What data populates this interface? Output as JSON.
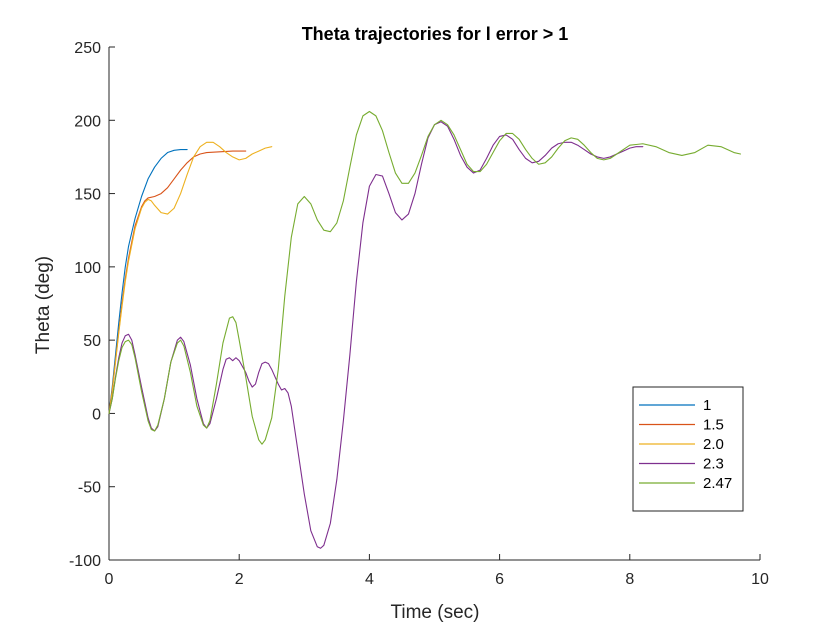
{
  "chart_data": {
    "type": "line",
    "title": "Theta trajectories for l error > 1",
    "xlabel": "Time (sec)",
    "ylabel": "Theta (deg)",
    "xlim": [
      0,
      10
    ],
    "ylim": [
      -100,
      250
    ],
    "xticks": [
      0,
      2,
      4,
      6,
      8,
      10
    ],
    "yticks": [
      -100,
      -50,
      0,
      50,
      100,
      150,
      200,
      250
    ],
    "grid": false,
    "legend_position": "bottom-right",
    "series": [
      {
        "name": "1",
        "color": "#0072BD",
        "points": [
          [
            0,
            0
          ],
          [
            0.05,
            18
          ],
          [
            0.1,
            40
          ],
          [
            0.15,
            62
          ],
          [
            0.2,
            82
          ],
          [
            0.25,
            100
          ],
          [
            0.3,
            114
          ],
          [
            0.4,
            133
          ],
          [
            0.5,
            148
          ],
          [
            0.6,
            160
          ],
          [
            0.7,
            168
          ],
          [
            0.8,
            174
          ],
          [
            0.9,
            178
          ],
          [
            1.0,
            179.5
          ],
          [
            1.1,
            180
          ],
          [
            1.2,
            180
          ]
        ]
      },
      {
        "name": "1.5",
        "color": "#D95319",
        "points": [
          [
            0,
            0
          ],
          [
            0.05,
            16
          ],
          [
            0.1,
            36
          ],
          [
            0.15,
            56
          ],
          [
            0.2,
            75
          ],
          [
            0.25,
            92
          ],
          [
            0.3,
            106
          ],
          [
            0.4,
            128
          ],
          [
            0.5,
            141
          ],
          [
            0.55,
            145
          ],
          [
            0.6,
            147
          ],
          [
            0.7,
            148
          ],
          [
            0.8,
            150
          ],
          [
            0.9,
            154
          ],
          [
            1.0,
            160
          ],
          [
            1.1,
            166
          ],
          [
            1.2,
            171
          ],
          [
            1.3,
            175
          ],
          [
            1.4,
            177
          ],
          [
            1.5,
            178
          ],
          [
            1.7,
            178.5
          ],
          [
            1.9,
            179
          ],
          [
            2.1,
            179
          ]
        ]
      },
      {
        "name": "2.0",
        "color": "#EDB120",
        "points": [
          [
            0,
            0
          ],
          [
            0.05,
            15
          ],
          [
            0.1,
            35
          ],
          [
            0.15,
            55
          ],
          [
            0.2,
            73
          ],
          [
            0.25,
            90
          ],
          [
            0.3,
            104
          ],
          [
            0.4,
            126
          ],
          [
            0.5,
            140
          ],
          [
            0.55,
            144
          ],
          [
            0.6,
            146
          ],
          [
            0.65,
            145
          ],
          [
            0.7,
            142
          ],
          [
            0.8,
            137
          ],
          [
            0.9,
            136
          ],
          [
            1.0,
            140
          ],
          [
            1.1,
            150
          ],
          [
            1.2,
            163
          ],
          [
            1.3,
            175
          ],
          [
            1.4,
            182
          ],
          [
            1.5,
            185
          ],
          [
            1.6,
            185
          ],
          [
            1.7,
            182
          ],
          [
            1.8,
            178
          ],
          [
            1.9,
            175
          ],
          [
            2.0,
            173
          ],
          [
            2.1,
            174
          ],
          [
            2.2,
            177
          ],
          [
            2.3,
            179
          ],
          [
            2.4,
            181
          ],
          [
            2.5,
            182
          ]
        ]
      },
      {
        "name": "2.3",
        "color": "#7E2F8E",
        "points": [
          [
            0,
            0
          ],
          [
            0.05,
            10
          ],
          [
            0.1,
            25
          ],
          [
            0.15,
            38
          ],
          [
            0.2,
            48
          ],
          [
            0.25,
            53
          ],
          [
            0.3,
            54
          ],
          [
            0.35,
            50
          ],
          [
            0.4,
            40
          ],
          [
            0.5,
            18
          ],
          [
            0.6,
            -3
          ],
          [
            0.65,
            -10
          ],
          [
            0.7,
            -12
          ],
          [
            0.75,
            -9
          ],
          [
            0.85,
            10
          ],
          [
            0.95,
            35
          ],
          [
            1.05,
            50
          ],
          [
            1.1,
            52
          ],
          [
            1.15,
            49
          ],
          [
            1.25,
            33
          ],
          [
            1.35,
            10
          ],
          [
            1.45,
            -7
          ],
          [
            1.5,
            -10
          ],
          [
            1.55,
            -7
          ],
          [
            1.65,
            10
          ],
          [
            1.75,
            30
          ],
          [
            1.8,
            37
          ],
          [
            1.85,
            38
          ],
          [
            1.9,
            36
          ],
          [
            1.95,
            38
          ],
          [
            2.0,
            36
          ],
          [
            2.1,
            28
          ],
          [
            2.15,
            22
          ],
          [
            2.2,
            18
          ],
          [
            2.25,
            20
          ],
          [
            2.3,
            28
          ],
          [
            2.35,
            34
          ],
          [
            2.4,
            35
          ],
          [
            2.45,
            34
          ],
          [
            2.5,
            30
          ],
          [
            2.55,
            25
          ],
          [
            2.6,
            20
          ],
          [
            2.65,
            16
          ],
          [
            2.7,
            17
          ],
          [
            2.75,
            14
          ],
          [
            2.8,
            5
          ],
          [
            2.9,
            -25
          ],
          [
            3.0,
            -55
          ],
          [
            3.1,
            -80
          ],
          [
            3.2,
            -91
          ],
          [
            3.25,
            -92
          ],
          [
            3.3,
            -90
          ],
          [
            3.4,
            -75
          ],
          [
            3.5,
            -45
          ],
          [
            3.6,
            -5
          ],
          [
            3.7,
            40
          ],
          [
            3.8,
            90
          ],
          [
            3.9,
            130
          ],
          [
            4.0,
            155
          ],
          [
            4.1,
            163
          ],
          [
            4.2,
            162
          ],
          [
            4.3,
            150
          ],
          [
            4.4,
            137
          ],
          [
            4.5,
            132
          ],
          [
            4.6,
            136
          ],
          [
            4.7,
            150
          ],
          [
            4.8,
            170
          ],
          [
            4.9,
            188
          ],
          [
            5.0,
            197
          ],
          [
            5.1,
            199
          ],
          [
            5.2,
            196
          ],
          [
            5.3,
            187
          ],
          [
            5.4,
            176
          ],
          [
            5.5,
            168
          ],
          [
            5.6,
            164
          ],
          [
            5.7,
            166
          ],
          [
            5.8,
            174
          ],
          [
            5.9,
            183
          ],
          [
            6.0,
            189
          ],
          [
            6.1,
            190
          ],
          [
            6.2,
            187
          ],
          [
            6.3,
            180
          ],
          [
            6.4,
            174
          ],
          [
            6.5,
            171
          ],
          [
            6.6,
            172
          ],
          [
            6.7,
            176
          ],
          [
            6.8,
            181
          ],
          [
            6.9,
            184
          ],
          [
            7.0,
            185
          ],
          [
            7.1,
            185
          ],
          [
            7.2,
            183
          ],
          [
            7.3,
            180
          ],
          [
            7.4,
            177
          ],
          [
            7.5,
            175
          ],
          [
            7.6,
            174
          ],
          [
            7.7,
            175
          ],
          [
            7.8,
            177
          ],
          [
            7.9,
            179
          ],
          [
            8.0,
            181
          ],
          [
            8.1,
            182
          ],
          [
            8.2,
            182
          ]
        ]
      },
      {
        "name": "2.47",
        "color": "#77AC30",
        "points": [
          [
            0,
            0
          ],
          [
            0.05,
            10
          ],
          [
            0.1,
            24
          ],
          [
            0.15,
            36
          ],
          [
            0.2,
            45
          ],
          [
            0.25,
            49
          ],
          [
            0.3,
            50
          ],
          [
            0.35,
            47
          ],
          [
            0.4,
            38
          ],
          [
            0.5,
            15
          ],
          [
            0.6,
            -5
          ],
          [
            0.65,
            -11
          ],
          [
            0.7,
            -12
          ],
          [
            0.75,
            -8
          ],
          [
            0.85,
            10
          ],
          [
            0.95,
            35
          ],
          [
            1.05,
            48
          ],
          [
            1.1,
            50
          ],
          [
            1.15,
            46
          ],
          [
            1.25,
            28
          ],
          [
            1.35,
            5
          ],
          [
            1.45,
            -8
          ],
          [
            1.5,
            -10
          ],
          [
            1.55,
            -5
          ],
          [
            1.65,
            20
          ],
          [
            1.75,
            48
          ],
          [
            1.85,
            65
          ],
          [
            1.9,
            66
          ],
          [
            1.95,
            62
          ],
          [
            2.0,
            50
          ],
          [
            2.1,
            25
          ],
          [
            2.2,
            -2
          ],
          [
            2.3,
            -18
          ],
          [
            2.35,
            -21
          ],
          [
            2.4,
            -18
          ],
          [
            2.5,
            -3
          ],
          [
            2.6,
            30
          ],
          [
            2.7,
            80
          ],
          [
            2.8,
            120
          ],
          [
            2.9,
            143
          ],
          [
            3.0,
            148
          ],
          [
            3.1,
            143
          ],
          [
            3.2,
            132
          ],
          [
            3.3,
            125
          ],
          [
            3.4,
            124
          ],
          [
            3.5,
            130
          ],
          [
            3.6,
            145
          ],
          [
            3.7,
            168
          ],
          [
            3.8,
            190
          ],
          [
            3.9,
            203
          ],
          [
            4.0,
            206
          ],
          [
            4.1,
            203
          ],
          [
            4.2,
            193
          ],
          [
            4.3,
            178
          ],
          [
            4.4,
            164
          ],
          [
            4.5,
            157
          ],
          [
            4.6,
            157
          ],
          [
            4.7,
            164
          ],
          [
            4.8,
            176
          ],
          [
            4.9,
            189
          ],
          [
            5.0,
            197
          ],
          [
            5.1,
            200
          ],
          [
            5.2,
            197
          ],
          [
            5.3,
            190
          ],
          [
            5.4,
            180
          ],
          [
            5.5,
            170
          ],
          [
            5.6,
            165
          ],
          [
            5.7,
            165
          ],
          [
            5.8,
            170
          ],
          [
            5.9,
            178
          ],
          [
            6.0,
            186
          ],
          [
            6.1,
            191
          ],
          [
            6.2,
            191
          ],
          [
            6.3,
            187
          ],
          [
            6.4,
            180
          ],
          [
            6.5,
            174
          ],
          [
            6.6,
            170
          ],
          [
            6.7,
            171
          ],
          [
            6.8,
            175
          ],
          [
            6.9,
            181
          ],
          [
            7.0,
            186
          ],
          [
            7.1,
            188
          ],
          [
            7.2,
            187
          ],
          [
            7.3,
            183
          ],
          [
            7.4,
            178
          ],
          [
            7.5,
            174
          ],
          [
            7.6,
            173
          ],
          [
            7.7,
            174
          ],
          [
            7.8,
            177
          ],
          [
            7.9,
            180
          ],
          [
            8.0,
            183
          ],
          [
            8.2,
            184
          ],
          [
            8.4,
            182
          ],
          [
            8.6,
            178
          ],
          [
            8.8,
            176
          ],
          [
            9.0,
            178
          ],
          [
            9.2,
            183
          ],
          [
            9.4,
            182
          ],
          [
            9.6,
            178
          ],
          [
            9.7,
            177
          ]
        ]
      }
    ]
  }
}
